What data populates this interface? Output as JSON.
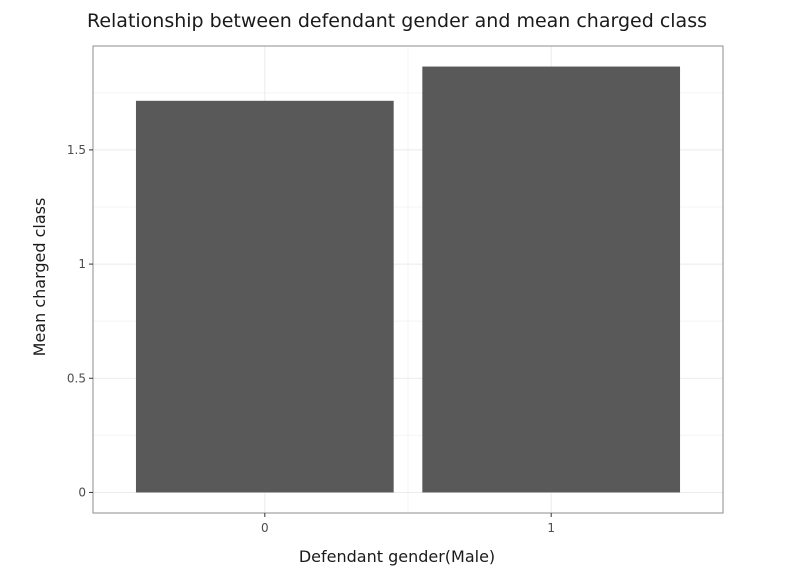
{
  "colors": {
    "bar": "#595959",
    "panel_border": "#8c8c8c",
    "grid_major": "#ebebeb",
    "grid_minor": "#f4f4f4",
    "tick": "#333333",
    "background": "#ffffff"
  },
  "chart_data": {
    "type": "bar",
    "title": "Relationship between defendant gender and mean charged class",
    "xlabel": "Defendant gender(Male)",
    "ylabel": "Mean charged class",
    "categories": [
      "0",
      "1"
    ],
    "values": [
      1.715,
      1.865
    ],
    "ylim": [
      -0.09,
      1.955
    ],
    "yticks": [
      0,
      0.5,
      1,
      1.5
    ],
    "ytick_labels": [
      "0",
      "0.5",
      "1",
      "1.5"
    ],
    "grid": true,
    "legend": "none"
  }
}
